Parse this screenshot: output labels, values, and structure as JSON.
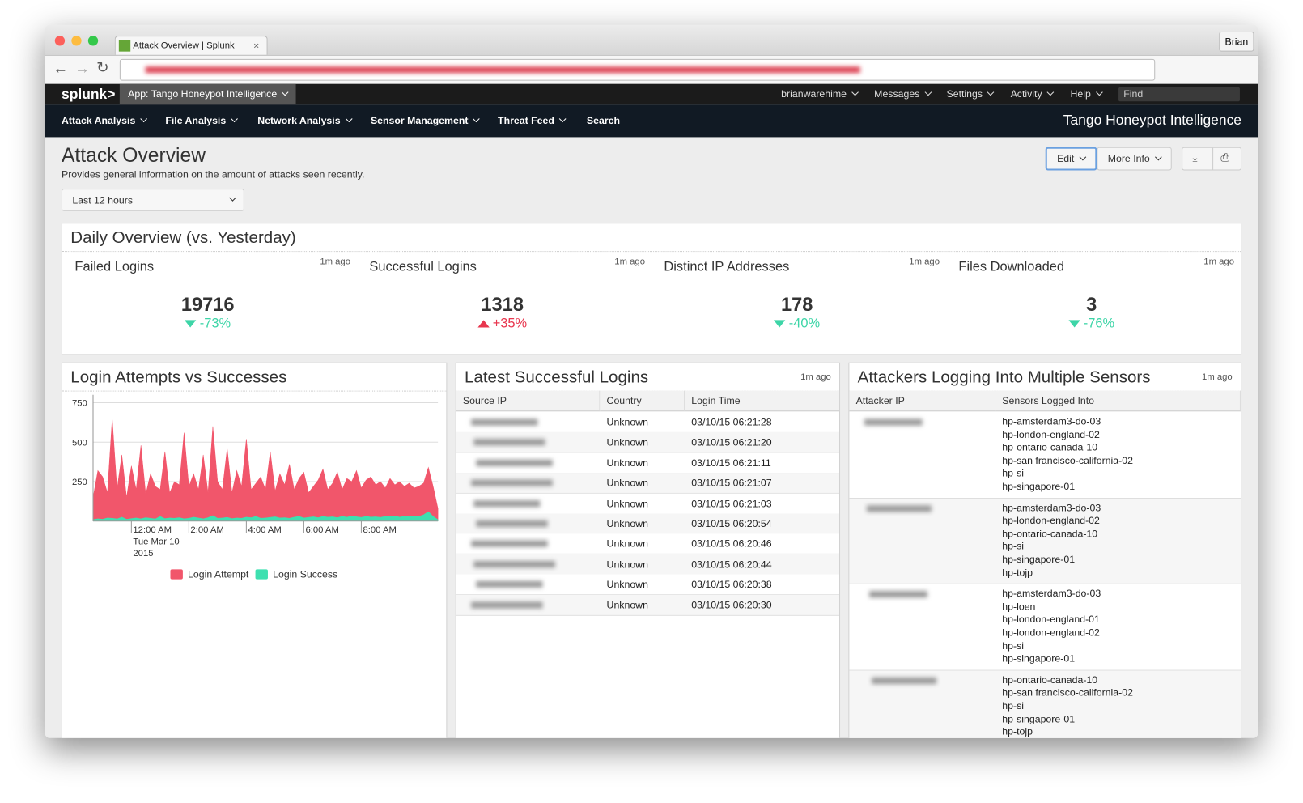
{
  "browser": {
    "tab_title": "Attack Overview | Splunk",
    "user": "Brian"
  },
  "nav": {
    "logo": "splunk>",
    "app": "App: Tango Honeypot Intelligence",
    "right_menu": [
      "brianwarehime",
      "Messages",
      "Settings",
      "Activity",
      "Help"
    ],
    "find": "Find",
    "menu": [
      "Attack Analysis",
      "File Analysis",
      "Network Analysis",
      "Sensor Management",
      "Threat Feed",
      "Search"
    ],
    "app_title": "Tango Honeypot Intelligence"
  },
  "header": {
    "title": "Attack Overview",
    "description": "Provides general information on the amount of attacks seen recently.",
    "edit": "Edit",
    "more_info": "More Info",
    "time_range": "Last 12 hours"
  },
  "daily": {
    "title": "Daily Overview (vs. Yesterday)",
    "metrics": [
      {
        "label": "Failed Logins",
        "age": "1m ago",
        "value": 19716,
        "change": "-73%",
        "trend": "down",
        "color": "#3dd5a7"
      },
      {
        "label": "Successful Logins",
        "age": "1m ago",
        "value": 1318,
        "change": "+35%",
        "trend": "up",
        "color": "#e8374f"
      },
      {
        "label": "Distinct IP Addresses",
        "age": "1m ago",
        "value": 178,
        "change": "-40%",
        "trend": "down",
        "color": "#3dd5a7"
      },
      {
        "label": "Files Downloaded",
        "age": "1m ago",
        "value": 3,
        "change": "-76%",
        "trend": "down",
        "color": "#3dd5a7"
      }
    ]
  },
  "chart_data": {
    "type": "area",
    "title": "Login Attempts vs Successes",
    "categories": [
      null,
      null,
      null,
      null,
      null,
      null,
      null,
      null,
      "12:00 AM",
      null,
      null,
      null,
      null,
      null,
      null,
      null,
      null,
      null,
      null,
      null,
      "2:00 AM",
      null,
      null,
      null,
      null,
      null,
      null,
      null,
      null,
      null,
      null,
      null,
      "4:00 AM",
      null,
      null,
      null,
      null,
      null,
      null,
      null,
      null,
      null,
      null,
      null,
      "6:00 AM",
      null,
      null,
      null,
      null,
      null,
      null,
      null,
      null,
      null,
      null,
      null,
      "8:00 AM",
      null,
      null,
      null,
      null,
      null,
      null,
      null,
      null,
      null,
      null,
      null,
      null,
      null,
      null,
      null,
      null
    ],
    "x_date_label": "Tue Mar 10",
    "x_year_label": "2015",
    "series": [
      {
        "name": "Login Attempt",
        "color": "#f1566b",
        "values": [
          150,
          320,
          280,
          180,
          650,
          200,
          420,
          150,
          350,
          200,
          480,
          170,
          300,
          220,
          200,
          440,
          180,
          250,
          230,
          560,
          220,
          300,
          200,
          420,
          180,
          600,
          250,
          200,
          460,
          180,
          320,
          220,
          520,
          200,
          240,
          280,
          200,
          440,
          190,
          300,
          230,
          360,
          200,
          270,
          310,
          180,
          220,
          260,
          330,
          200,
          240,
          310,
          200,
          270,
          250,
          320,
          210,
          260,
          280,
          230,
          250,
          210,
          270,
          230,
          250,
          220,
          240,
          210,
          220,
          240,
          340,
          220,
          80
        ]
      },
      {
        "name": "Login Success",
        "color": "#3ee0b0",
        "values": [
          10,
          15,
          12,
          20,
          18,
          14,
          25,
          12,
          16,
          20,
          15,
          22,
          18,
          14,
          30,
          16,
          20,
          18,
          22,
          15,
          18,
          25,
          20,
          15,
          22,
          35,
          18,
          20,
          24,
          16,
          20,
          18,
          25,
          22,
          30,
          18,
          20,
          24,
          28,
          20,
          22,
          18,
          25,
          30,
          20,
          24,
          28,
          22,
          30,
          25,
          28,
          22,
          30,
          25,
          32,
          28,
          24,
          30,
          26,
          28,
          24,
          30,
          28,
          32,
          26,
          30,
          28,
          34,
          30,
          40,
          60,
          30,
          10
        ]
      }
    ],
    "ylim": [
      0,
      800
    ],
    "yticks": [
      250,
      500,
      750
    ],
    "grid": true,
    "legend": "bottom"
  },
  "logins": {
    "title": "Latest Successful Logins",
    "age": "1m ago",
    "columns": [
      "Source IP",
      "Country",
      "Login Time"
    ],
    "rows": [
      [
        "Unknown",
        "03/10/15 06:21:28"
      ],
      [
        "Unknown",
        "03/10/15 06:21:20"
      ],
      [
        "Unknown",
        "03/10/15 06:21:11"
      ],
      [
        "Unknown",
        "03/10/15 06:21:07"
      ],
      [
        "Unknown",
        "03/10/15 06:21:03"
      ],
      [
        "Unknown",
        "03/10/15 06:20:54"
      ],
      [
        "Unknown",
        "03/10/15 06:20:46"
      ],
      [
        "Unknown",
        "03/10/15 06:20:44"
      ],
      [
        "Unknown",
        "03/10/15 06:20:38"
      ],
      [
        "Unknown",
        "03/10/15 06:20:30"
      ]
    ]
  },
  "multi": {
    "title": "Attackers Logging Into Multiple Sensors",
    "age": "1m ago",
    "columns": [
      "Attacker IP",
      "Sensors Logged Into"
    ],
    "rows": [
      [
        "hp-amsterdam3-do-03",
        "hp-london-england-02",
        "hp-ontario-canada-10",
        "hp-san francisco-california-02",
        "hp-si",
        "hp-singapore-01"
      ],
      [
        "hp-amsterdam3-do-03",
        "hp-london-england-02",
        "hp-ontario-canada-10",
        "hp-si",
        "hp-singapore-01",
        "hp-tojp"
      ],
      [
        "hp-amsterdam3-do-03",
        "hp-loen",
        "hp-london-england-01",
        "hp-london-england-02",
        "hp-si",
        "hp-singapore-01"
      ],
      [
        "hp-ontario-canada-10",
        "hp-san francisco-california-02",
        "hp-si",
        "hp-singapore-01",
        "hp-tojp"
      ]
    ]
  }
}
